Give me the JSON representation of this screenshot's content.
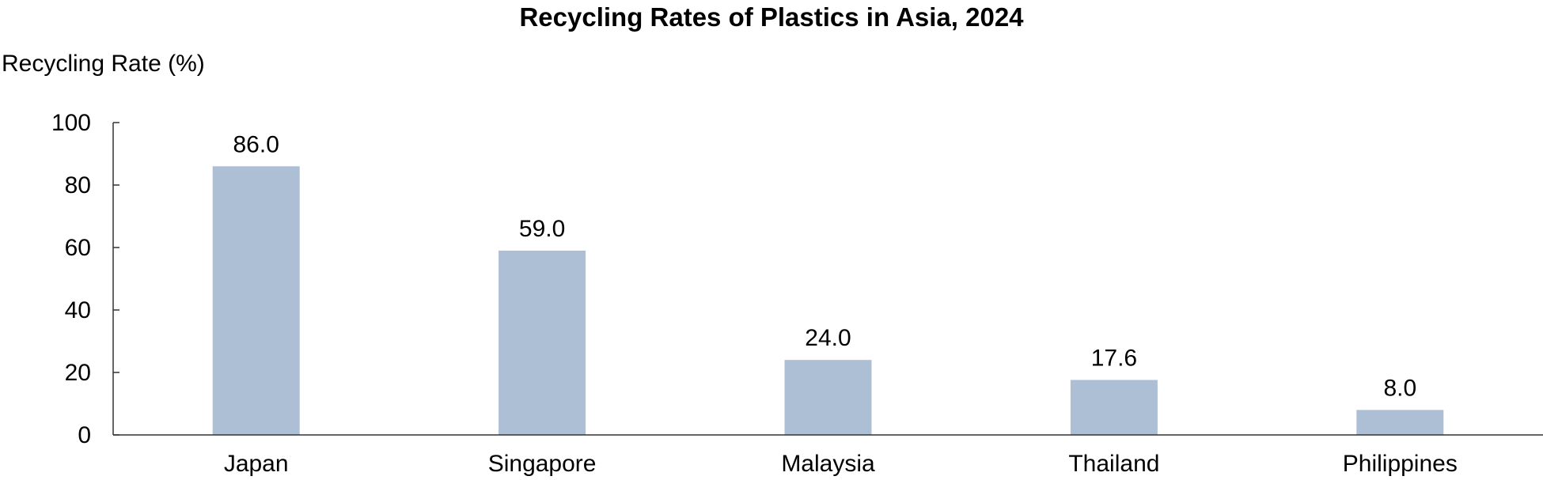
{
  "chart_data": {
    "type": "bar",
    "title": "Recycling Rates of Plastics in Asia, 2024",
    "xlabel": "",
    "ylabel": "Recycling Rate (%)",
    "categories": [
      "Japan",
      "Singapore",
      "Malaysia",
      "Thailand",
      "Philippines"
    ],
    "values": [
      86.0,
      59.0,
      24.0,
      17.6,
      8.0
    ],
    "value_labels": [
      "86.0",
      "59.0",
      "24.0",
      "17.6",
      "8.0"
    ],
    "ylim": [
      0,
      100
    ],
    "yticks": [
      0,
      20,
      40,
      60,
      80,
      100
    ],
    "ytick_labels": [
      "0",
      "20",
      "40",
      "60",
      "80",
      "100"
    ],
    "grid": false,
    "legend": "none",
    "bar_color": "#adbfd5"
  }
}
